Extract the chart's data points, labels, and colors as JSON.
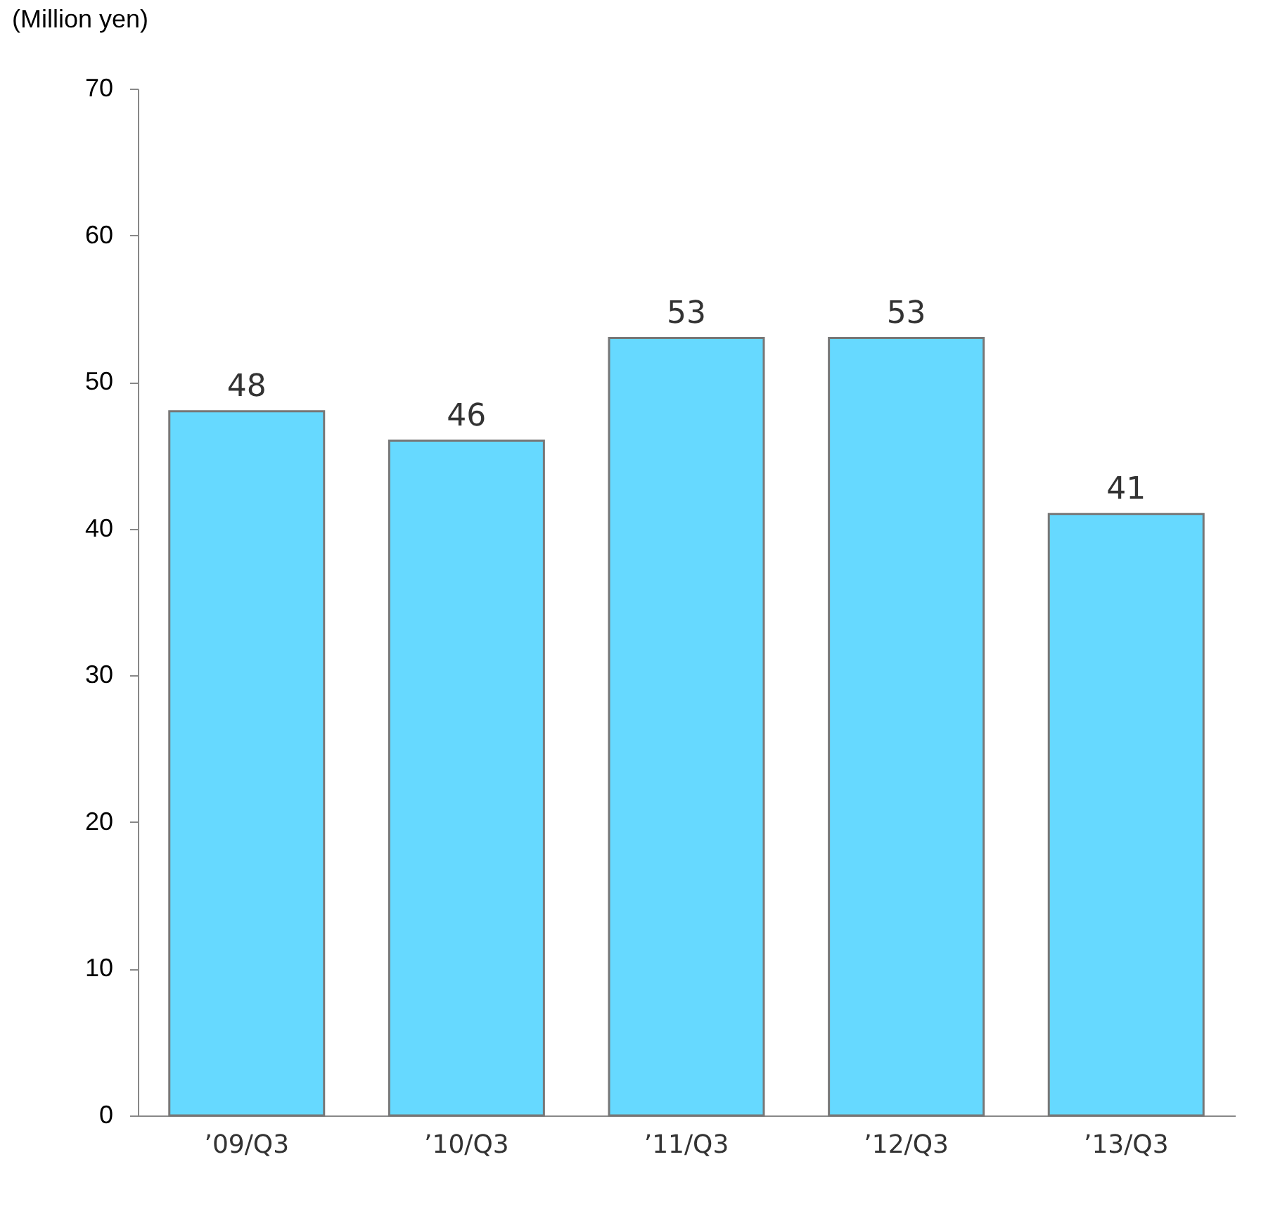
{
  "chart_data": {
    "type": "bar",
    "ylabel": "(Million yen)",
    "categories": [
      "’09/Q3",
      "’10/Q3",
      "’11/Q3",
      "’12/Q3",
      "’13/Q3"
    ],
    "values": [
      48,
      46,
      53,
      53,
      41
    ],
    "color": "#66d9ff",
    "ylim": [
      0,
      70
    ],
    "yticks": [
      0,
      10,
      20,
      30,
      40,
      50,
      60,
      70
    ],
    "grid": false,
    "data_labels": true
  }
}
